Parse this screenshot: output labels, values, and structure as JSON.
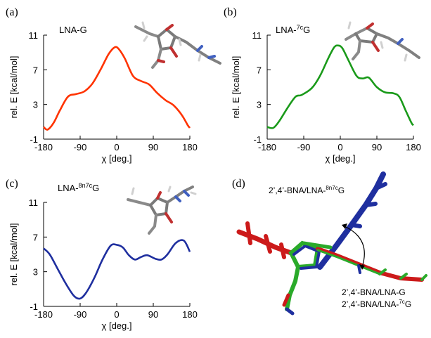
{
  "panels": [
    {
      "letter": "(a)",
      "title_main": "LNA-G",
      "title_sup": ""
    },
    {
      "letter": "(b)",
      "title_main": "LNA-",
      "title_sup": "7c",
      "title_tail": "G"
    },
    {
      "letter": "(c)",
      "title_main": "LNA-",
      "title_sup": "8n7c",
      "title_tail": "G"
    },
    {
      "letter": "(d)"
    }
  ],
  "annotations": {
    "d_top_main": "2’,4’-BNA/LNA-",
    "d_top_sup": "8n7c",
    "d_top_tail": "G",
    "d_bottom1": "2’,4’-BNA/LNA-G",
    "d_bottom2_main": "2’,4’-BNA/LNA-",
    "d_bottom2_sup": "7c",
    "d_bottom2_tail": "G"
  },
  "chart_data": [
    {
      "type": "line",
      "title": "LNA-G",
      "xlabel": "χ [deg.]",
      "ylabel": "rel. E [kcal/mol]",
      "xlim": [
        -180,
        180
      ],
      "ylim": [
        -1,
        11
      ],
      "xticks": [
        -180,
        -90,
        0,
        90,
        180
      ],
      "yticks": [
        -1,
        3,
        7,
        11
      ],
      "series": [
        {
          "color": "#ff3300",
          "x": [
            -180,
            -170,
            -155,
            -140,
            -120,
            -100,
            -80,
            -60,
            -40,
            -20,
            -5,
            5,
            20,
            40,
            60,
            80,
            100,
            120,
            140,
            160,
            175,
            180
          ],
          "y": [
            0.4,
            0.1,
            0.9,
            2.3,
            3.9,
            4.2,
            4.5,
            5.4,
            7.0,
            8.8,
            9.6,
            9.4,
            8.3,
            6.3,
            5.7,
            5.3,
            4.3,
            3.5,
            2.9,
            1.8,
            0.6,
            0.3
          ]
        }
      ]
    },
    {
      "type": "line",
      "title": "LNA-7cG",
      "xlabel": "χ [deg.]",
      "ylabel": "rel. E [kcal/mol]",
      "xlim": [
        -180,
        180
      ],
      "ylim": [
        -1,
        11
      ],
      "xticks": [
        -180,
        -90,
        0,
        90,
        180
      ],
      "yticks": [
        -1,
        3,
        7,
        11
      ],
      "series": [
        {
          "color": "#1a9a1a",
          "x": [
            -180,
            -165,
            -150,
            -130,
            -110,
            -95,
            -70,
            -50,
            -30,
            -15,
            -5,
            5,
            20,
            40,
            55,
            70,
            90,
            110,
            130,
            145,
            160,
            175,
            180
          ],
          "y": [
            0.4,
            0.3,
            1.1,
            2.6,
            3.9,
            4.1,
            4.9,
            6.3,
            8.3,
            9.6,
            9.8,
            9.5,
            8.1,
            6.3,
            6.0,
            6.1,
            5.0,
            4.4,
            4.3,
            3.9,
            2.4,
            0.9,
            0.6
          ]
        }
      ]
    },
    {
      "type": "line",
      "title": "LNA-8n7cG",
      "xlabel": "χ [deg.]",
      "ylabel": "rel. E [kcal/mol]",
      "xlim": [
        -180,
        180
      ],
      "ylim": [
        -1,
        11
      ],
      "xticks": [
        -180,
        -90,
        0,
        90,
        180
      ],
      "yticks": [
        -1,
        3,
        7,
        11
      ],
      "series": [
        {
          "color": "#1f2f9f",
          "x": [
            -180,
            -165,
            -145,
            -125,
            -105,
            -90,
            -75,
            -55,
            -35,
            -15,
            0,
            15,
            30,
            45,
            60,
            75,
            95,
            110,
            125,
            145,
            165,
            180
          ],
          "y": [
            5.7,
            5.0,
            3.3,
            1.6,
            0.2,
            -0.1,
            0.6,
            2.3,
            4.4,
            6.0,
            6.1,
            5.8,
            4.9,
            4.4,
            4.7,
            4.9,
            4.5,
            4.4,
            5.0,
            6.3,
            6.6,
            5.3
          ]
        }
      ]
    }
  ]
}
